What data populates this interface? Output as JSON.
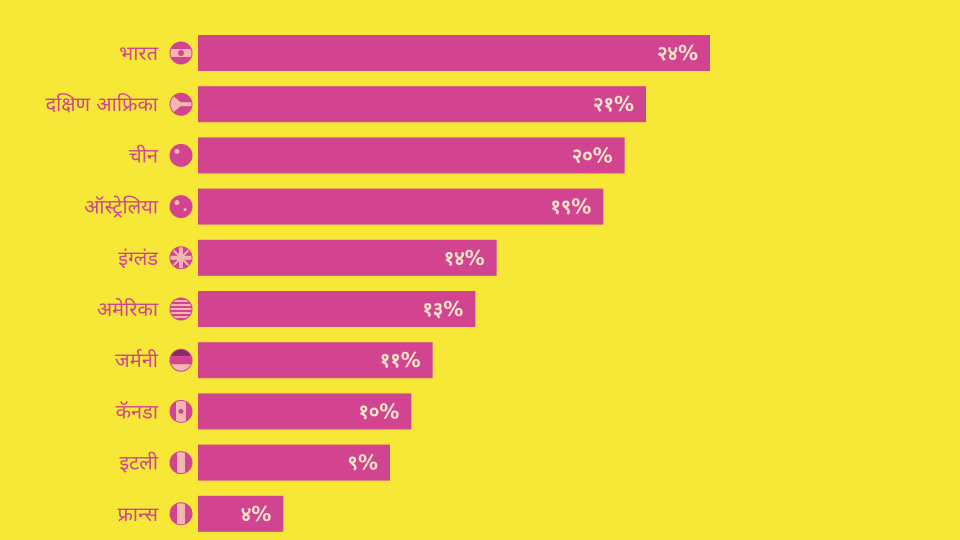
{
  "colors": {
    "background": "#F7E838",
    "bar": "#D2448F",
    "label_text": "#D2448F",
    "value_text": "#F7E4C8",
    "flag_muted": "#E8A9A9"
  },
  "chart_data": {
    "type": "bar",
    "orientation": "horizontal",
    "grid": false,
    "legend": "none",
    "xlim": [
      0,
      24
    ],
    "categories": [
      "भारत",
      "दक्षिण आफ्रिका",
      "चीन",
      "ऑस्ट्रेलिया",
      "इंग्लंड",
      "अमेरिका",
      "जर्मनी",
      "कॅनडा",
      "इटली",
      "फ्रान्स"
    ],
    "values": [
      24,
      21,
      20,
      19,
      14,
      13,
      11,
      10,
      9,
      4
    ],
    "value_labels": [
      "२४%",
      "२१%",
      "२०%",
      "१९%",
      "१४%",
      "१३%",
      "११%",
      "१०%",
      "९%",
      "४%"
    ],
    "flag_icons": [
      "india-flag-icon",
      "south-africa-flag-icon",
      "china-flag-icon",
      "australia-flag-icon",
      "england-flag-icon",
      "usa-flag-icon",
      "germany-flag-icon",
      "canada-flag-icon",
      "italy-flag-icon",
      "france-flag-icon"
    ]
  }
}
